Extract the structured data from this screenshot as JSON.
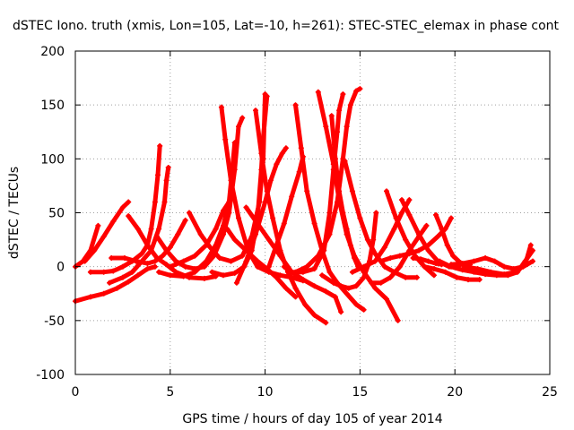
{
  "chart_data": {
    "type": "scatter",
    "title": "dSTEC Iono. truth (xmis, Lon=105, Lat=-10, h=261): STEC-STEC_elemax in phase cont",
    "xlabel": "GPS time / hours of day 105 of year 2014",
    "ylabel": "dSTEC  / TECUs",
    "xlim": [
      0,
      25
    ],
    "ylim": [
      -100,
      200
    ],
    "xticks": [
      "0",
      "5",
      "10",
      "15",
      "20",
      "25"
    ],
    "yticks": [
      "-100",
      "-50",
      "0",
      "50",
      "100",
      "150",
      "200"
    ],
    "grid": true,
    "marker": "plus",
    "color": "#ff0000",
    "series": [
      {
        "points": [
          [
            0,
            -32
          ],
          [
            0.8,
            -28
          ],
          [
            1.5,
            -25
          ],
          [
            2.2,
            -20
          ],
          [
            2.8,
            -14
          ],
          [
            3.3,
            -8
          ],
          [
            3.8,
            -2
          ],
          [
            4.2,
            0
          ]
        ]
      },
      {
        "points": [
          [
            0,
            0
          ],
          [
            0.4,
            5
          ],
          [
            0.8,
            15
          ],
          [
            1.2,
            38
          ]
        ]
      },
      {
        "points": [
          [
            0.5,
            5
          ],
          [
            1,
            15
          ],
          [
            1.5,
            28
          ],
          [
            2,
            42
          ],
          [
            2.5,
            55
          ],
          [
            2.8,
            60
          ]
        ]
      },
      {
        "points": [
          [
            0.8,
            -5
          ],
          [
            1.5,
            -5
          ],
          [
            2,
            -4
          ],
          [
            2.5,
            0
          ],
          [
            3,
            5
          ],
          [
            3.5,
            12
          ],
          [
            3.8,
            20
          ],
          [
            4,
            35
          ],
          [
            4.2,
            60
          ],
          [
            4.35,
            85
          ],
          [
            4.45,
            112
          ]
        ]
      },
      {
        "points": [
          [
            1.8,
            -15
          ],
          [
            2.5,
            -10
          ],
          [
            3,
            -5
          ],
          [
            3.5,
            5
          ],
          [
            4,
            15
          ],
          [
            4.4,
            35
          ],
          [
            4.7,
            60
          ],
          [
            4.8,
            80
          ],
          [
            4.9,
            92
          ]
        ]
      },
      {
        "points": [
          [
            1.9,
            8
          ],
          [
            2.6,
            8
          ],
          [
            3.2,
            5
          ],
          [
            3.8,
            3
          ],
          [
            4.2,
            5
          ],
          [
            4.6,
            10
          ],
          [
            5,
            18
          ],
          [
            5.4,
            30
          ],
          [
            5.8,
            43
          ]
        ]
      },
      {
        "points": [
          [
            2.8,
            47
          ],
          [
            3.3,
            35
          ],
          [
            3.8,
            20
          ],
          [
            4.3,
            8
          ],
          [
            4.8,
            2
          ],
          [
            5.3,
            -5
          ],
          [
            6,
            -10
          ],
          [
            6.8,
            -11
          ],
          [
            7.4,
            -9
          ]
        ]
      },
      {
        "points": [
          [
            4.4,
            -5
          ],
          [
            5,
            -8
          ],
          [
            5.7,
            -9
          ],
          [
            6.3,
            -5
          ],
          [
            6.9,
            5
          ],
          [
            7.4,
            20
          ],
          [
            7.8,
            38
          ],
          [
            8.1,
            60
          ],
          [
            8.3,
            95
          ],
          [
            8.4,
            115
          ]
        ]
      },
      {
        "points": [
          [
            4.3,
            28
          ],
          [
            4.8,
            15
          ],
          [
            5.3,
            5
          ],
          [
            5.8,
            0
          ],
          [
            6.3,
            -2
          ],
          [
            6.8,
            0
          ],
          [
            7.3,
            10
          ],
          [
            7.8,
            30
          ],
          [
            8.1,
            50
          ],
          [
            8.4,
            90
          ],
          [
            8.6,
            130
          ],
          [
            8.8,
            138
          ]
        ]
      },
      {
        "points": [
          [
            5,
            0
          ],
          [
            5.7,
            5
          ],
          [
            6.3,
            10
          ],
          [
            6.9,
            20
          ],
          [
            7.4,
            35
          ],
          [
            7.8,
            52
          ],
          [
            8.1,
            60
          ]
        ]
      },
      {
        "points": [
          [
            6,
            50
          ],
          [
            6.6,
            30
          ],
          [
            7.1,
            18
          ],
          [
            7.6,
            8
          ],
          [
            8.2,
            5
          ],
          [
            8.8,
            10
          ],
          [
            9.3,
            28
          ],
          [
            9.7,
            60
          ],
          [
            9.9,
            100
          ],
          [
            10,
            160
          ]
        ]
      },
      {
        "points": [
          [
            7.2,
            -5
          ],
          [
            7.8,
            -8
          ],
          [
            8.4,
            -6
          ],
          [
            8.9,
            0
          ],
          [
            9.3,
            15
          ],
          [
            9.6,
            45
          ],
          [
            9.8,
            90
          ],
          [
            9.9,
            120
          ],
          [
            10.1,
            158
          ]
        ]
      },
      {
        "points": [
          [
            7.7,
            148
          ],
          [
            7.9,
            118
          ],
          [
            8.2,
            80
          ],
          [
            8.6,
            45
          ],
          [
            9.1,
            15
          ],
          [
            9.6,
            0
          ],
          [
            10.2,
            -5
          ],
          [
            10.8,
            -8
          ],
          [
            11.4,
            -10
          ],
          [
            12,
            -13
          ]
        ]
      },
      {
        "points": [
          [
            8,
            35
          ],
          [
            8.4,
            25
          ],
          [
            9,
            15
          ],
          [
            9.6,
            5
          ],
          [
            10.1,
            -2
          ],
          [
            10.6,
            -10
          ],
          [
            11.1,
            -20
          ],
          [
            11.6,
            -28
          ]
        ]
      },
      {
        "points": [
          [
            8.5,
            -15
          ],
          [
            9,
            5
          ],
          [
            9.5,
            30
          ],
          [
            10,
            60
          ],
          [
            10.3,
            80
          ],
          [
            10.6,
            95
          ],
          [
            10.9,
            105
          ],
          [
            11.1,
            110
          ]
        ]
      },
      {
        "points": [
          [
            9.5,
            145
          ],
          [
            9.8,
            105
          ],
          [
            10.1,
            70
          ],
          [
            10.4,
            45
          ],
          [
            10.8,
            15
          ],
          [
            11.2,
            -5
          ],
          [
            11.6,
            -20
          ],
          [
            12.1,
            -35
          ],
          [
            12.6,
            -45
          ],
          [
            13.2,
            -52
          ]
        ]
      },
      {
        "points": [
          [
            10.2,
            0
          ],
          [
            10.6,
            20
          ],
          [
            11,
            40
          ],
          [
            11.4,
            65
          ],
          [
            11.8,
            88
          ],
          [
            12,
            102
          ]
        ]
      },
      {
        "points": [
          [
            11.6,
            150
          ],
          [
            11.9,
            110
          ],
          [
            12.2,
            70
          ],
          [
            12.6,
            40
          ],
          [
            13,
            15
          ],
          [
            13.4,
            -5
          ],
          [
            13.8,
            -15
          ],
          [
            14.3,
            -25
          ],
          [
            14.8,
            -35
          ],
          [
            15.2,
            -40
          ]
        ]
      },
      {
        "points": [
          [
            9,
            55
          ],
          [
            9.6,
            40
          ],
          [
            10.2,
            25
          ],
          [
            10.8,
            10
          ],
          [
            11.4,
            -5
          ],
          [
            12,
            -12
          ],
          [
            12.6,
            -18
          ],
          [
            13.2,
            -23
          ],
          [
            13.7,
            -28
          ],
          [
            14,
            -42
          ]
        ]
      },
      {
        "points": [
          [
            11,
            0
          ],
          [
            11.4,
            -5
          ],
          [
            12,
            -5
          ],
          [
            12.6,
            -2
          ],
          [
            13.1,
            15
          ],
          [
            13.4,
            50
          ],
          [
            13.6,
            90
          ],
          [
            13.8,
            125
          ],
          [
            13.9,
            145
          ],
          [
            14.1,
            160
          ]
        ]
      },
      {
        "points": [
          [
            11.6,
            -5
          ],
          [
            12.2,
            0
          ],
          [
            12.8,
            10
          ],
          [
            13.4,
            30
          ],
          [
            13.8,
            60
          ],
          [
            14.1,
            100
          ],
          [
            14.3,
            130
          ],
          [
            14.5,
            150
          ],
          [
            14.8,
            163
          ],
          [
            15,
            165
          ]
        ]
      },
      {
        "points": [
          [
            12.8,
            162
          ],
          [
            13.2,
            130
          ],
          [
            13.6,
            95
          ],
          [
            13.9,
            62
          ],
          [
            14.3,
            30
          ],
          [
            14.7,
            10
          ],
          [
            15.2,
            -5
          ],
          [
            15.8,
            -20
          ],
          [
            16.4,
            -30
          ],
          [
            17,
            -50
          ]
        ]
      },
      {
        "points": [
          [
            13.5,
            140
          ],
          [
            13.7,
            100
          ],
          [
            13.9,
            70
          ],
          [
            14.1,
            50
          ],
          [
            14.3,
            35
          ],
          [
            14.5,
            20
          ],
          [
            14.7,
            8
          ],
          [
            14.9,
            0
          ]
        ]
      },
      {
        "points": [
          [
            13,
            -8
          ],
          [
            13.6,
            -15
          ],
          [
            14,
            -18
          ],
          [
            14.4,
            -20
          ],
          [
            14.8,
            -18
          ],
          [
            15.2,
            -10
          ],
          [
            15.5,
            5
          ],
          [
            15.7,
            25
          ],
          [
            15.85,
            50
          ]
        ]
      },
      {
        "points": [
          [
            14.2,
            98
          ],
          [
            14.6,
            70
          ],
          [
            15,
            45
          ],
          [
            15.4,
            25
          ],
          [
            15.8,
            12
          ],
          [
            16.3,
            0
          ],
          [
            16.8,
            -5
          ],
          [
            17.4,
            -10
          ],
          [
            18,
            -10
          ]
        ]
      },
      {
        "points": [
          [
            14.6,
            -5
          ],
          [
            15.2,
            0
          ],
          [
            15.8,
            5
          ],
          [
            16.3,
            18
          ],
          [
            16.8,
            35
          ],
          [
            17.2,
            50
          ],
          [
            17.6,
            62
          ]
        ]
      },
      {
        "points": [
          [
            15.6,
            -15
          ],
          [
            16.1,
            -15
          ],
          [
            16.6,
            -10
          ],
          [
            17.1,
            0
          ],
          [
            17.6,
            15
          ],
          [
            18.1,
            28
          ],
          [
            18.5,
            38
          ]
        ]
      },
      {
        "points": [
          [
            16.4,
            70
          ],
          [
            16.9,
            45
          ],
          [
            17.4,
            25
          ],
          [
            17.9,
            10
          ],
          [
            18.4,
            0
          ],
          [
            18.9,
            -8
          ]
        ]
      },
      {
        "points": [
          [
            17.2,
            62
          ],
          [
            17.6,
            48
          ],
          [
            18.1,
            30
          ],
          [
            18.6,
            15
          ],
          [
            19.1,
            5
          ],
          [
            19.7,
            0
          ],
          [
            20.3,
            2
          ],
          [
            20.8,
            2
          ]
        ]
      },
      {
        "points": [
          [
            17.8,
            8
          ],
          [
            18.2,
            7
          ],
          [
            18.6,
            5
          ],
          [
            19,
            3
          ],
          [
            19.3,
            2
          ]
        ]
      },
      {
        "points": [
          [
            16.1,
            5
          ],
          [
            16.6,
            8
          ],
          [
            17.1,
            10
          ],
          [
            17.6,
            12
          ],
          [
            18.1,
            15
          ],
          [
            18.6,
            20
          ],
          [
            19.1,
            28
          ],
          [
            19.5,
            35
          ],
          [
            19.8,
            45
          ]
        ]
      },
      {
        "points": [
          [
            19,
            48
          ],
          [
            19.3,
            35
          ],
          [
            19.6,
            20
          ],
          [
            19.9,
            10
          ],
          [
            20.2,
            5
          ],
          [
            20.6,
            0
          ],
          [
            21.1,
            -5
          ]
        ]
      },
      {
        "points": [
          [
            18.4,
            0
          ],
          [
            18.9,
            -2
          ],
          [
            19.5,
            -5
          ],
          [
            20.1,
            -10
          ],
          [
            20.7,
            -12
          ],
          [
            21.3,
            -12
          ]
        ]
      },
      {
        "points": [
          [
            19.2,
            5
          ],
          [
            19.8,
            0
          ],
          [
            20.4,
            -3
          ],
          [
            21,
            -5
          ],
          [
            21.6,
            -7
          ],
          [
            22.2,
            -8
          ],
          [
            22.8,
            -8
          ],
          [
            23.3,
            -5
          ],
          [
            23.7,
            5
          ],
          [
            24.1,
            15
          ]
        ]
      },
      {
        "points": [
          [
            19.8,
            2
          ],
          [
            20.4,
            3
          ],
          [
            21,
            5
          ],
          [
            21.6,
            8
          ],
          [
            22.1,
            5
          ],
          [
            22.6,
            0
          ],
          [
            23.1,
            -2
          ],
          [
            23.6,
            0
          ],
          [
            24.1,
            5
          ]
        ]
      },
      {
        "points": [
          [
            20.5,
            0
          ],
          [
            21.2,
            -2
          ],
          [
            21.9,
            -5
          ],
          [
            22.6,
            -7
          ],
          [
            23.2,
            -5
          ],
          [
            23.7,
            2
          ],
          [
            24,
            20
          ]
        ]
      }
    ]
  }
}
